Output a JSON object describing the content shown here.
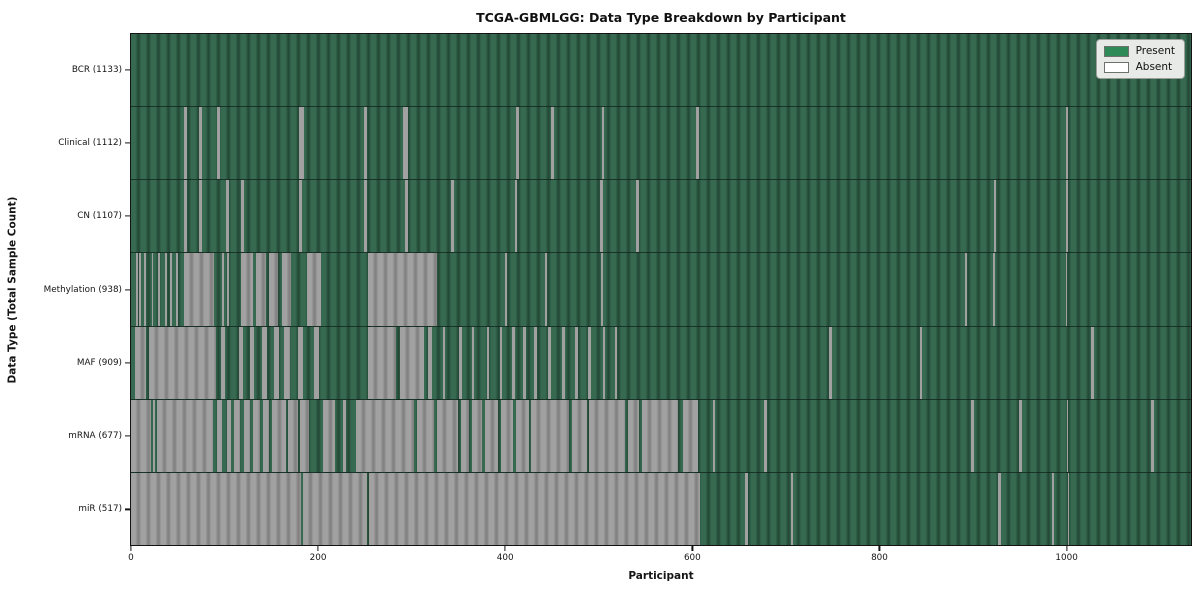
{
  "title": "TCGA-GBMLGG: Data Type Breakdown by Participant",
  "axes": {
    "xlabel": "Participant",
    "ylabel": "Data Type (Total Sample Count)"
  },
  "legend": {
    "present_label": "Present",
    "absent_label": "Absent",
    "present_color": "#2e8b57",
    "absent_color": "#ffffff"
  },
  "colors": {
    "present_light": "#366950",
    "present_dark": "#234635",
    "absent_light": "#a0a0a0",
    "absent_dark": "#7f7f7f",
    "plot_border": "#141414"
  },
  "chart_data": {
    "type": "heatmap",
    "title": "TCGA-GBMLGG: Data Type Breakdown by Participant",
    "xlabel": "Participant",
    "ylabel": "Data Type (Total Sample Count)",
    "x_max": 1133,
    "x_ticks": [
      0,
      200,
      400,
      600,
      800,
      1000
    ],
    "legend_entries": [
      "Present",
      "Absent"
    ],
    "legend_position": "upper right",
    "rows": [
      {
        "label": "BCR (1133)",
        "data_type": "BCR",
        "total_samples": 1133,
        "absent_intervals": []
      },
      {
        "label": "Clinical (1112)",
        "data_type": "Clinical",
        "total_samples": 1112,
        "absent_intervals": [
          [
            57,
            60
          ],
          [
            73,
            76
          ],
          [
            92,
            95
          ],
          [
            180,
            185
          ],
          [
            249,
            252
          ],
          [
            291,
            296
          ],
          [
            412,
            415
          ],
          [
            449,
            452
          ],
          [
            503,
            506
          ],
          [
            604,
            607
          ],
          [
            999,
            1002
          ]
        ]
      },
      {
        "label": "CN (1107)",
        "data_type": "CN",
        "total_samples": 1107,
        "absent_intervals": [
          [
            57,
            60
          ],
          [
            73,
            76
          ],
          [
            102,
            105
          ],
          [
            118,
            121
          ],
          [
            180,
            183
          ],
          [
            249,
            252
          ],
          [
            293,
            296
          ],
          [
            342,
            345
          ],
          [
            410,
            413
          ],
          [
            501,
            504
          ],
          [
            540,
            543
          ],
          [
            922,
            925
          ],
          [
            999,
            1002
          ]
        ]
      },
      {
        "label": "Methylation (938)",
        "data_type": "Methylation",
        "total_samples": 938,
        "absent_intervals": [
          [
            5,
            7
          ],
          [
            9,
            11
          ],
          [
            14,
            16
          ],
          [
            22,
            24
          ],
          [
            29,
            31
          ],
          [
            36,
            38
          ],
          [
            42,
            44
          ],
          [
            48,
            50
          ],
          [
            57,
            89
          ],
          [
            97,
            99
          ],
          [
            103,
            105
          ],
          [
            118,
            130
          ],
          [
            134,
            144
          ],
          [
            148,
            157
          ],
          [
            161,
            171
          ],
          [
            188,
            203
          ],
          [
            253,
            327
          ],
          [
            400,
            402
          ],
          [
            443,
            445
          ],
          [
            502,
            504
          ],
          [
            891,
            894
          ],
          [
            921,
            923
          ],
          [
            999,
            1001
          ]
        ]
      },
      {
        "label": "MAF (909)",
        "data_type": "MAF",
        "total_samples": 909,
        "absent_intervals": [
          [
            4,
            16
          ],
          [
            19,
            91
          ],
          [
            96,
            101
          ],
          [
            115,
            120
          ],
          [
            127,
            132
          ],
          [
            140,
            145
          ],
          [
            153,
            158
          ],
          [
            164,
            170
          ],
          [
            178,
            184
          ],
          [
            196,
            201
          ],
          [
            253,
            283
          ],
          [
            288,
            313
          ],
          [
            317,
            322
          ],
          [
            333,
            336
          ],
          [
            351,
            354
          ],
          [
            364,
            367
          ],
          [
            380,
            383
          ],
          [
            394,
            397
          ],
          [
            407,
            410
          ],
          [
            419,
            422
          ],
          [
            431,
            434
          ],
          [
            446,
            449
          ],
          [
            461,
            464
          ],
          [
            475,
            478
          ],
          [
            489,
            492
          ],
          [
            504,
            507
          ],
          [
            517,
            520
          ],
          [
            746,
            749
          ],
          [
            843,
            846
          ],
          [
            1026,
            1029
          ]
        ]
      },
      {
        "label": "mRNA (677)",
        "data_type": "mRNA",
        "total_samples": 677,
        "absent_intervals": [
          [
            0,
            21
          ],
          [
            23,
            26
          ],
          [
            28,
            88
          ],
          [
            92,
            97
          ],
          [
            103,
            107
          ],
          [
            110,
            117
          ],
          [
            121,
            127
          ],
          [
            130,
            138
          ],
          [
            141,
            148
          ],
          [
            151,
            166
          ],
          [
            168,
            178
          ],
          [
            181,
            190
          ],
          [
            205,
            218
          ],
          [
            227,
            230
          ],
          [
            240,
            303
          ],
          [
            306,
            324
          ],
          [
            327,
            350
          ],
          [
            353,
            361
          ],
          [
            364,
            375
          ],
          [
            378,
            392
          ],
          [
            395,
            408
          ],
          [
            411,
            425
          ],
          [
            428,
            468
          ],
          [
            471,
            487
          ],
          [
            490,
            528
          ],
          [
            531,
            543
          ],
          [
            546,
            585
          ],
          [
            590,
            606
          ],
          [
            622,
            624
          ],
          [
            677,
            680
          ],
          [
            898,
            901
          ],
          [
            949,
            952
          ],
          [
            1000,
            1002
          ],
          [
            1090,
            1093
          ]
        ]
      },
      {
        "label": "miR (517)",
        "data_type": "miR",
        "total_samples": 517,
        "absent_intervals": [
          [
            0,
            182
          ],
          [
            184,
            252
          ],
          [
            254,
            608
          ],
          [
            656,
            659
          ],
          [
            705,
            708
          ],
          [
            927,
            930
          ],
          [
            984,
            987
          ],
          [
            1001,
            1003
          ]
        ]
      }
    ]
  }
}
